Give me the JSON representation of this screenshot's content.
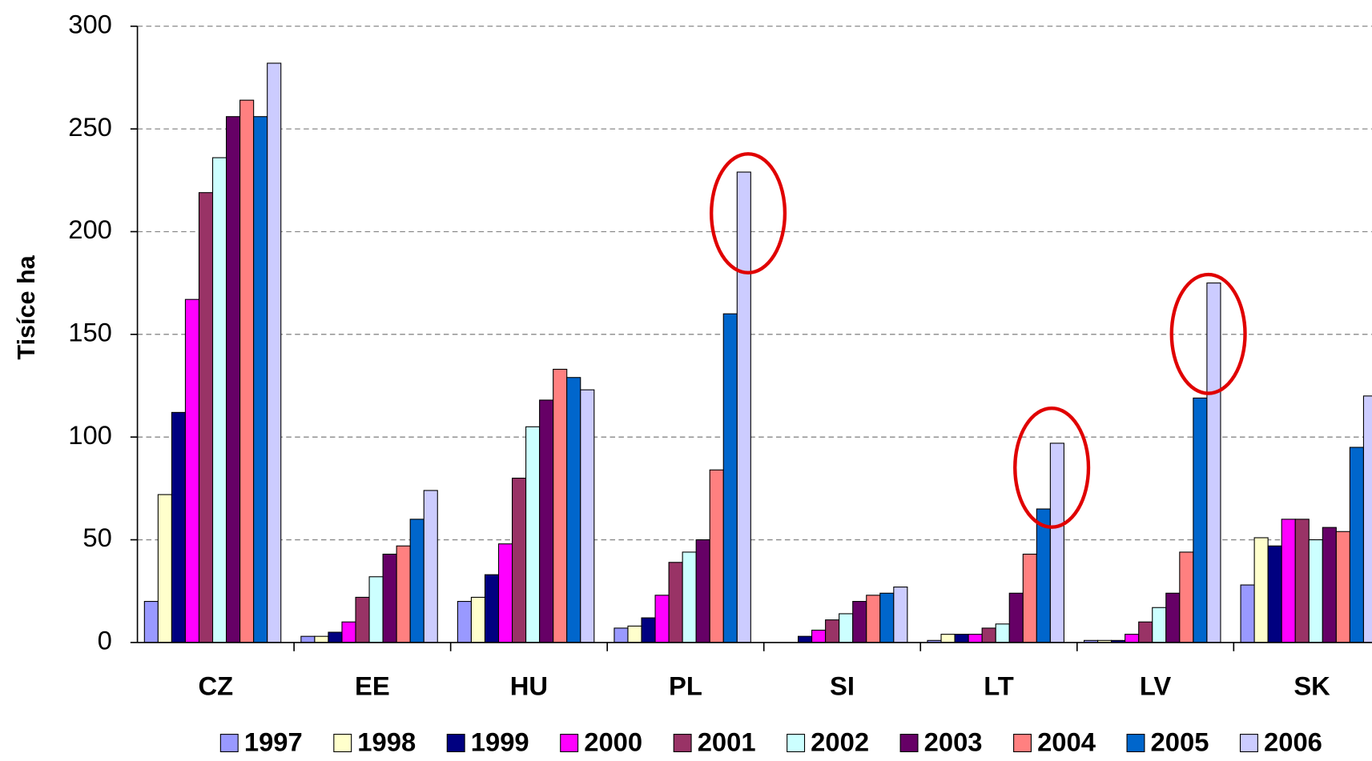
{
  "chart_data": {
    "type": "bar",
    "y_label": "Tisíce ha",
    "categories": [
      "CZ",
      "EE",
      "HU",
      "PL",
      "SI",
      "LT",
      "LV",
      "SK"
    ],
    "series": [
      {
        "name": "1997",
        "color": "#9999ff",
        "values": [
          20,
          3,
          20,
          7,
          0,
          1,
          1,
          28
        ]
      },
      {
        "name": "1998",
        "color": "#ffffcc",
        "values": [
          72,
          3,
          22,
          8,
          0,
          4,
          1,
          51
        ]
      },
      {
        "name": "1999",
        "color": "#000080",
        "values": [
          112,
          5,
          33,
          12,
          3,
          4,
          1,
          47
        ]
      },
      {
        "name": "2000",
        "color": "#ff00ff",
        "values": [
          167,
          10,
          48,
          23,
          6,
          4,
          4,
          60
        ]
      },
      {
        "name": "2001",
        "color": "#993366",
        "values": [
          219,
          22,
          80,
          39,
          11,
          7,
          10,
          60
        ]
      },
      {
        "name": "2002",
        "color": "#ccffff",
        "values": [
          236,
          32,
          105,
          44,
          14,
          9,
          17,
          50
        ]
      },
      {
        "name": "2003",
        "color": "#660066",
        "values": [
          256,
          43,
          118,
          50,
          20,
          24,
          24,
          56
        ]
      },
      {
        "name": "2004",
        "color": "#ff8080",
        "values": [
          264,
          47,
          133,
          84,
          23,
          43,
          44,
          54
        ]
      },
      {
        "name": "2005",
        "color": "#0066cc",
        "values": [
          256,
          60,
          129,
          160,
          24,
          65,
          119,
          95
        ]
      },
      {
        "name": "2006",
        "color": "#ccccff",
        "values": [
          282,
          74,
          123,
          229,
          27,
          97,
          175,
          120
        ]
      }
    ],
    "ylim": [
      0,
      300
    ],
    "yticks": [
      0,
      50,
      100,
      150,
      200,
      250,
      300
    ],
    "grid": true,
    "legend": "bottom"
  }
}
